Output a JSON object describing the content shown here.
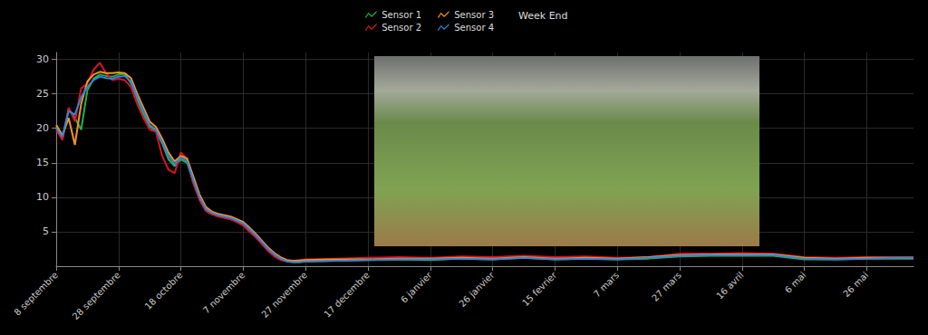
{
  "chart_data": {
    "type": "line",
    "legend": "top",
    "grid": true,
    "annotations": [
      "Week End"
    ],
    "x": [
      0,
      2,
      4,
      6,
      8,
      10,
      12,
      14,
      16,
      18,
      20,
      22,
      24,
      26,
      28,
      30,
      32,
      34,
      36,
      38,
      40,
      42,
      44,
      46,
      48,
      50,
      52,
      54,
      56,
      58,
      60,
      62,
      64,
      66,
      68,
      70,
      72,
      74,
      76,
      78,
      80,
      90,
      100,
      110,
      120,
      130,
      140,
      150,
      160,
      170,
      180,
      190,
      200,
      210,
      220,
      230,
      240,
      250,
      260,
      270,
      275
    ],
    "xlim": [
      0,
      275
    ],
    "xticks": [
      {
        "value": 0,
        "label": "8 septembre"
      },
      {
        "value": 20,
        "label": "28 septembre"
      },
      {
        "value": 40,
        "label": "18 octobre"
      },
      {
        "value": 60,
        "label": "7 novembre"
      },
      {
        "value": 80,
        "label": "27 novembre"
      },
      {
        "value": 100,
        "label": "17 decembre"
      },
      {
        "value": 120,
        "label": "6 janvier"
      },
      {
        "value": 140,
        "label": "26 janvier"
      },
      {
        "value": 160,
        "label": "15 fevrier"
      },
      {
        "value": 180,
        "label": "7 mars"
      },
      {
        "value": 200,
        "label": "27 mars"
      },
      {
        "value": 220,
        "label": "16 avril"
      },
      {
        "value": 240,
        "label": "6 mai"
      },
      {
        "value": 260,
        "label": "26 mai"
      }
    ],
    "ylim": [
      0,
      31
    ],
    "yticks": [
      5,
      10,
      15,
      20,
      25,
      30
    ],
    "series": [
      {
        "name": "Sensor 1",
        "color": "#22b14c",
        "values": [
          20.2,
          18.5,
          22.8,
          21.5,
          19.8,
          25.5,
          27.2,
          27.8,
          27.6,
          27.5,
          27.8,
          27.9,
          26.5,
          24.2,
          22,
          20.2,
          19.6,
          17.8,
          15.5,
          14.5,
          15.5,
          15,
          12.2,
          9.8,
          8.2,
          7.6,
          7.3,
          7.1,
          6.9,
          6.5,
          6,
          5.2,
          4.3,
          3.3,
          2.3,
          1.5,
          1,
          0.7,
          0.6,
          0.6,
          0.7,
          0.8,
          0.9,
          1,
          0.9,
          1.1,
          1,
          1.2,
          1,
          1.1,
          1,
          1.1,
          1.4,
          1.5,
          1.5,
          1.5,
          1,
          1,
          1.1,
          1.1,
          1.1
        ]
      },
      {
        "name": "Sensor 2",
        "color": "#e0102a",
        "values": [
          19.8,
          18.3,
          23,
          21,
          25.8,
          26.5,
          28.5,
          29.5,
          28,
          27,
          27.2,
          27,
          26,
          23.5,
          21.5,
          19.8,
          19.5,
          16,
          14,
          13.5,
          16.5,
          15.5,
          12,
          9.6,
          8,
          7.5,
          7.2,
          7,
          6.8,
          6.4,
          5.9,
          5,
          4.2,
          3.2,
          2.2,
          1.4,
          0.9,
          0.7,
          0.8,
          0.9,
          1,
          1.1,
          1.2,
          1.3,
          1.2,
          1.4,
          1.3,
          1.5,
          1.3,
          1.4,
          1.2,
          1.3,
          1.8,
          1.8,
          1.9,
          1.8,
          1.3,
          1.2,
          1.3,
          1.3,
          1.3
        ]
      },
      {
        "name": "Sensor 3",
        "color": "#f7941d",
        "values": [
          20.5,
          19,
          21.5,
          17.6,
          23.5,
          26.8,
          27.8,
          28.2,
          28,
          28,
          28.1,
          28,
          27.3,
          25,
          23,
          21,
          20.2,
          18.5,
          16.5,
          15.2,
          16,
          15.6,
          13,
          10.4,
          8.6,
          7.9,
          7.6,
          7.4,
          7.2,
          6.8,
          6.4,
          5.6,
          4.7,
          3.7,
          2.7,
          1.9,
          1.3,
          0.9,
          0.8,
          0.8,
          0.9,
          1,
          1,
          1.1,
          1.1,
          1.2,
          1.1,
          1.3,
          1.1,
          1.2,
          1.1,
          1.3,
          1.6,
          1.7,
          1.7,
          1.7,
          1.2,
          1.1,
          1.2,
          1.2,
          1.2
        ]
      },
      {
        "name": "Sensor 4",
        "color": "#2e86de",
        "values": [
          20,
          18.8,
          22.5,
          22,
          24.5,
          26,
          27,
          27.5,
          27.3,
          27.2,
          27.5,
          27.6,
          26.8,
          24.5,
          22.5,
          20.5,
          19.8,
          18,
          16,
          14.8,
          15.8,
          15.2,
          12.5,
          10,
          8.3,
          7.7,
          7.4,
          7.2,
          7,
          6.6,
          6.2,
          5.4,
          4.5,
          3.5,
          2.5,
          1.7,
          1.1,
          0.7,
          0.6,
          0.6,
          0.7,
          0.8,
          0.9,
          1,
          1,
          1.1,
          1,
          1.2,
          1,
          1.1,
          1,
          1.2,
          1.5,
          1.6,
          1.6,
          1.6,
          1.1,
          1,
          1.1,
          1.2,
          1.2
        ]
      }
    ]
  }
}
